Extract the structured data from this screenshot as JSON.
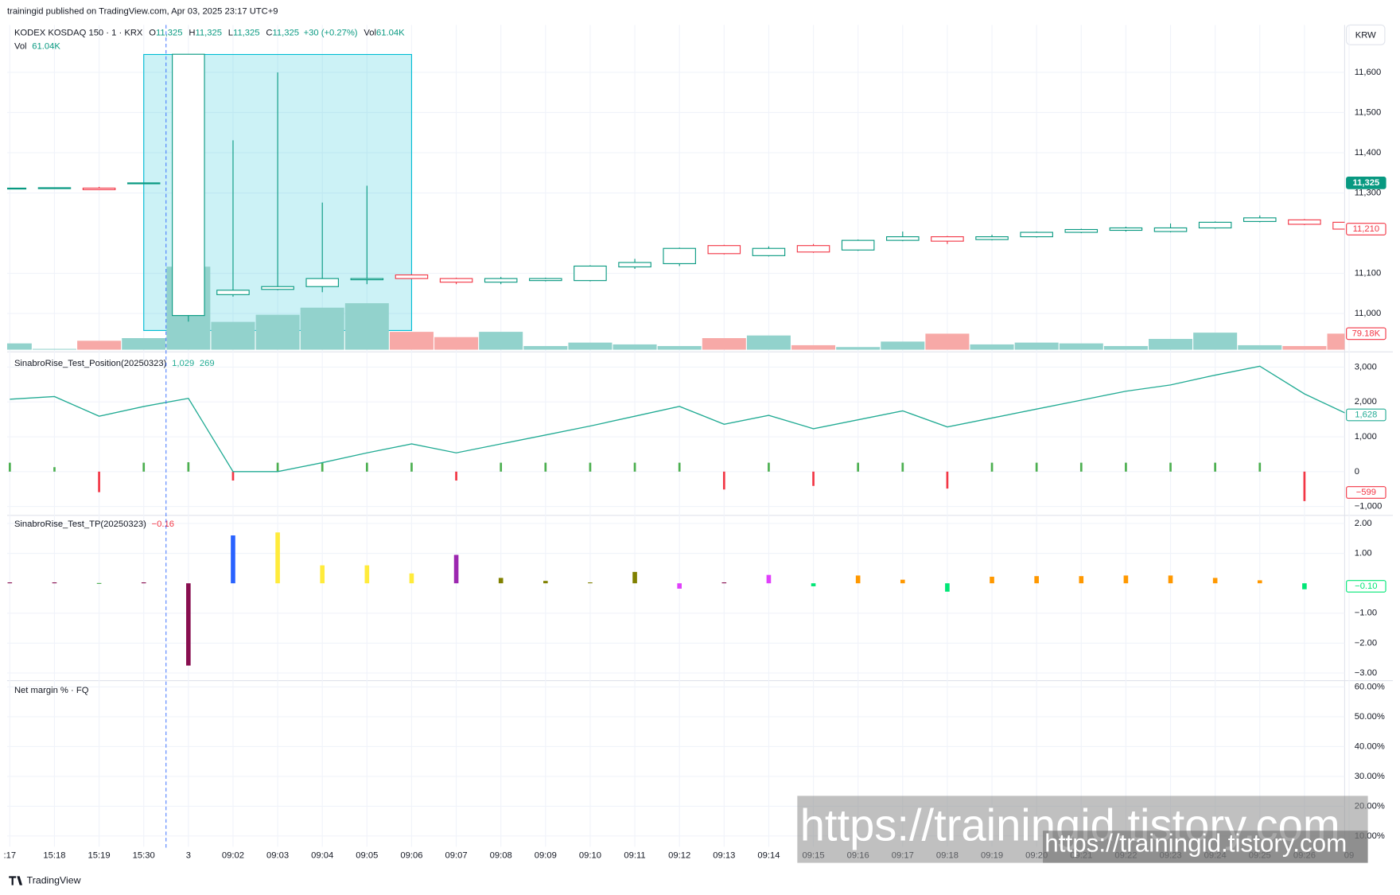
{
  "header": {
    "publisher": "trainingid published on TradingView.com, Apr 03, 2025 23:17 UTC+9",
    "currency": "KRW",
    "footer": "TradingView",
    "watermark": "https://trainingid.tistory.com",
    "watermark_small": "https://trainingid.tistory.com"
  },
  "chart_data": [
    {
      "type": "candlestick",
      "legend": {
        "symbol": "KODEX KOSDAQ 150 · 1 · KRX",
        "ohlc": [
          {
            "key": "O",
            "value": "11,325"
          },
          {
            "key": "H",
            "value": "11,325"
          },
          {
            "key": "L",
            "value": "11,325"
          },
          {
            "key": "C",
            "value": "11,325"
          }
        ],
        "change": "+30 (+0.27%)",
        "volume_key": "Vol",
        "volume": "61.04K"
      },
      "volume_legend": {
        "key": "Vol",
        "value": "61.04K"
      },
      "categories": [
        ":17",
        "15:18",
        "15:19",
        "15:30",
        "3",
        "09:02",
        "09:03",
        "09:04",
        "09:05",
        "09:06",
        "09:07",
        "09:08",
        "09:09",
        "09:10",
        "09:11",
        "09:12",
        "09:13",
        "09:14",
        "09:15",
        "09:16",
        "09:17",
        "09:18",
        "09:19",
        "09:20",
        "09:21",
        "09:22",
        "09:23",
        "09:24",
        "09:25",
        "09:26",
        "09"
      ],
      "open": [
        11310,
        11312,
        11312,
        11323,
        10995,
        11047,
        11060,
        11067,
        11084,
        11096,
        11087,
        11078,
        11082,
        11082,
        11116,
        11124,
        11169,
        11144,
        11169,
        11158,
        11182,
        11191,
        11184,
        11191,
        11202,
        11207,
        11204,
        11213,
        11229,
        11233,
        11227
      ],
      "high": [
        11313,
        11314,
        11315,
        11325,
        11645,
        11431,
        11600,
        11276,
        11318,
        11098,
        11089,
        11091,
        11089,
        11120,
        11136,
        11164,
        11171,
        11167,
        11173,
        11184,
        11204,
        11193,
        11196,
        11204,
        11211,
        11216,
        11224,
        11229,
        11244,
        11235,
        11229
      ],
      "low": [
        11310,
        11311,
        11307,
        11322,
        10980,
        11042,
        11058,
        11053,
        11073,
        11085,
        11073,
        11073,
        11080,
        11080,
        11111,
        11118,
        11147,
        11142,
        11151,
        11156,
        11180,
        11173,
        11182,
        11189,
        11200,
        11204,
        11202,
        11211,
        11227,
        11220,
        11208
      ],
      "close": [
        11312,
        11313,
        11308,
        11325,
        11645,
        11058,
        11067,
        11087,
        11087,
        11087,
        11078,
        11087,
        11087,
        11118,
        11127,
        11162,
        11149,
        11162,
        11153,
        11182,
        11191,
        11180,
        11191,
        11202,
        11209,
        11213,
        11213,
        11227,
        11238,
        11222,
        11210
      ],
      "up_color": "#089981",
      "down_color": "#f23645",
      "ylim": [
        10910,
        11710
      ],
      "yticks": [
        {
          "value": 11000,
          "label": "11,000"
        },
        {
          "value": 11100,
          "label": "11,100"
        },
        {
          "value": 11300,
          "label": "11,300"
        },
        {
          "value": 11400,
          "label": "11,400"
        },
        {
          "value": 11500,
          "label": "11,500"
        },
        {
          "value": 11600,
          "label": "11,600"
        }
      ],
      "tags": [
        {
          "value": 11325,
          "label": "11,325",
          "color": "#089981",
          "filled": true
        },
        {
          "value": 11210,
          "label": "11,210",
          "color": "#f23645",
          "filled": false
        }
      ],
      "volume": {
        "values": [
          31000,
          4000,
          44000,
          57000,
          409000,
          137000,
          172000,
          207000,
          229000,
          88000,
          62000,
          88000,
          18000,
          35000,
          26000,
          18000,
          57000,
          70000,
          22000,
          13000,
          40000,
          79000,
          26000,
          35000,
          31000,
          18000,
          53000,
          84000,
          22000,
          18000,
          79180
        ],
        "ylim": [
          0,
          440000
        ],
        "up_color": "#92d2cc",
        "down_color": "#f7a9a7",
        "tag": {
          "value": 79180,
          "label": "79.18K",
          "color": "#f23645"
        }
      },
      "grid": true
    },
    {
      "type": "line",
      "title": "SinabroRise_Test_Position(20250323)",
      "legend_values": [
        "1,029",
        "269"
      ],
      "series": [
        {
          "values": [
            2077,
            2154,
            1590,
            1870,
            2103,
            0,
            0,
            256,
            538,
            795,
            538,
            795,
            1051,
            1308,
            1590,
            1872,
            1359,
            1615,
            1231,
            1487,
            1744,
            1282,
            1538,
            1795,
            2051,
            2308,
            2487,
            2769,
            3026,
            2231,
            1628
          ],
          "color": "#22ab94"
        }
      ],
      "histogram": {
        "values": [
          256,
          128,
          -590,
          256,
          269,
          -256,
          256,
          256,
          256,
          256,
          -256,
          256,
          256,
          256,
          256,
          256,
          -513,
          256,
          -410,
          256,
          256,
          -487,
          256,
          256,
          256,
          256,
          256,
          256,
          256,
          -846,
          -599
        ],
        "up_color": "#4caf50",
        "down_color": "#f23645"
      },
      "ylim": [
        -1200,
        3330
      ],
      "yticks": [
        {
          "value": 3000,
          "label": "3,000"
        },
        {
          "value": 2000,
          "label": "2,000"
        },
        {
          "value": 1000,
          "label": "1,000"
        },
        0,
        {
          "value": -1000,
          "label": "−1,000"
        }
      ],
      "tags": [
        {
          "value": 1628,
          "label": "1,628",
          "color": "#22ab94",
          "filled": false
        },
        {
          "value": -599,
          "label": "−599",
          "color": "#f23645",
          "filled": false
        }
      ],
      "grid": true
    },
    {
      "type": "bar",
      "title": "SinabroRise_Test_TP(20250323)",
      "legend_values": [
        "−0.16"
      ],
      "values": [
        0.03,
        0.03,
        0.01,
        0.03,
        -2.75,
        1.6,
        1.7,
        0.6,
        0.6,
        0.33,
        0.95,
        0.18,
        0.08,
        0.03,
        0.38,
        -0.18,
        0.03,
        0.28,
        -0.1,
        0.26,
        0.12,
        -0.28,
        0.22,
        0.24,
        0.24,
        0.26,
        0.26,
        0.18,
        0.1,
        -0.2,
        -0.1
      ],
      "colors": [
        "#880e4f",
        "#880e4f",
        "#4caf50",
        "#880e4f",
        "#880e4f",
        "#2962ff",
        "#ffeb3b",
        "#ffeb3b",
        "#ffeb3b",
        "#ffeb3b",
        "#9c27b0",
        "#808000",
        "#808000",
        "#808000",
        "#808000",
        "#e040fb",
        "#880e4f",
        "#e040fb",
        "#00e676",
        "#ff9800",
        "#ff9800",
        "#00e676",
        "#ff9800",
        "#ff9800",
        "#ff9800",
        "#ff9800",
        "#ff9800",
        "#ff9800",
        "#ff9800",
        "#00e676",
        "#00e676"
      ],
      "ylim": [
        -3.2,
        2.24
      ],
      "yticks": [
        {
          "value": 2,
          "label": "2.00"
        },
        {
          "value": 1,
          "label": "1.00"
        },
        {
          "value": -1,
          "label": "−1.00"
        },
        {
          "value": -2,
          "label": "−2.00"
        },
        {
          "value": -3,
          "label": "−3.00"
        }
      ],
      "tags": [
        {
          "value": -0.1,
          "label": "−0.10",
          "color": "#00e676",
          "filled": false
        }
      ],
      "grid": true
    },
    {
      "type": "line",
      "title": "Net margin % · FQ",
      "ylim": [
        6.4,
        61.5
      ],
      "yticks": [
        {
          "value": 60,
          "label": "60.00%"
        },
        {
          "value": 50,
          "label": "50.00%"
        },
        {
          "value": 40,
          "label": "40.00%"
        },
        {
          "value": 30,
          "label": "30.00%"
        },
        {
          "value": 20,
          "label": "20.00%"
        },
        {
          "value": 10,
          "label": "10.00%"
        }
      ],
      "grid": true
    }
  ]
}
